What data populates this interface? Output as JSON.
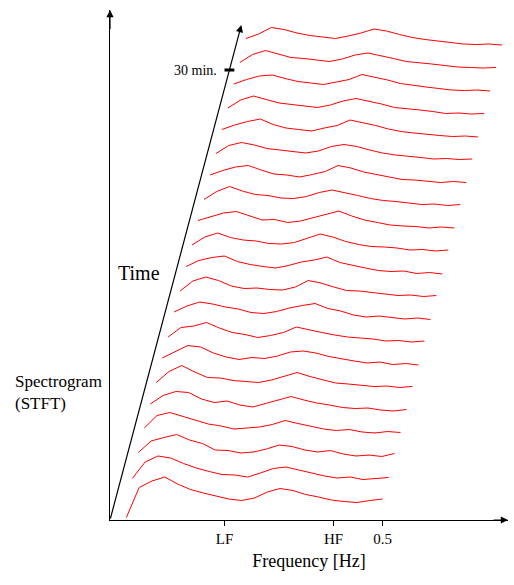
{
  "chart_data": {
    "type": "waterfall",
    "x_label": "Frequency [Hz]",
    "y_label": "Spectrogram (STFT)",
    "time_label": "Time",
    "color": "#ff0000",
    "grid": false,
    "tick_labels": "x",
    "xlim": [
      0,
      0.73
    ],
    "xticks": [
      {
        "value": 0.21,
        "label": "LF"
      },
      {
        "value": 0.41,
        "label": "HF"
      },
      0.5
    ],
    "ylim": [
      0,
      102
    ],
    "yticks": [],
    "time_lim": [
      0,
      33
    ],
    "time_ticks": [
      {
        "value": 30,
        "label": "30 min."
      }
    ],
    "x": [
      0.03,
      0.0535,
      0.077,
      0.1005,
      0.124,
      0.1475,
      0.171,
      0.1945,
      0.218,
      0.2415,
      0.265,
      0.2885,
      0.312,
      0.3355,
      0.359,
      0.3825,
      0.406,
      0.4295,
      0.453,
      0.4765,
      0.5
    ],
    "series": [
      {
        "time": 0,
        "values": [
          0.5,
          6.5,
          7.8,
          8.6,
          7.2,
          6.1,
          5.4,
          4.8,
          4.2,
          3.9,
          4.4,
          5.6,
          6.3,
          5.9,
          5.1,
          4.6,
          4.0,
          3.7,
          3.5,
          3.9,
          4.2
        ]
      },
      {
        "time": 1.5,
        "values": [
          3.8,
          7.1,
          8.3,
          7.9,
          6.8,
          5.9,
          5.2,
          4.6,
          4.5,
          4.1,
          4.9,
          5.8,
          6.1,
          5.5,
          4.8,
          4.3,
          3.9,
          4.1,
          3.6,
          3.8,
          4.0
        ]
      },
      {
        "time": 3,
        "values": [
          4.5,
          6.8,
          7.5,
          8.1,
          7.0,
          6.3,
          5.0,
          4.9,
          4.4,
          4.6,
          5.2,
          6.0,
          5.7,
          5.0,
          4.6,
          4.9,
          4.2,
          3.8,
          4.0,
          3.7,
          4.3
        ]
      },
      {
        "time": 4.5,
        "values": [
          4.9,
          7.4,
          8.0,
          7.2,
          6.5,
          5.7,
          5.3,
          4.7,
          4.9,
          5.1,
          5.6,
          6.4,
          5.8,
          5.3,
          4.7,
          4.4,
          4.6,
          4.1,
          3.9,
          4.2,
          4.0
        ]
      },
      {
        "time": 6,
        "values": [
          5.2,
          6.9,
          7.7,
          7.5,
          6.2,
          5.5,
          5.8,
          5.0,
          4.6,
          5.3,
          6.1,
          6.7,
          6.0,
          5.4,
          5.0,
          4.5,
          4.3,
          4.4,
          4.0,
          3.8,
          4.1
        ]
      },
      {
        "time": 7.5,
        "values": [
          5.0,
          7.2,
          8.4,
          7.1,
          6.0,
          5.9,
          5.4,
          5.2,
          5.0,
          5.5,
          6.3,
          7.0,
          6.2,
          5.6,
          4.9,
          4.7,
          4.5,
          4.2,
          4.3,
          4.0,
          4.2
        ]
      },
      {
        "time": 9,
        "values": [
          5.4,
          6.6,
          7.9,
          7.6,
          6.4,
          5.6,
          5.1,
          5.5,
          5.3,
          5.8,
          6.6,
          6.8,
          6.4,
          5.7,
          5.2,
          4.8,
          4.4,
          4.6,
          4.1,
          4.3,
          4.0
        ]
      },
      {
        "time": 10.5,
        "values": [
          5.1,
          7.0,
          7.3,
          8.0,
          6.9,
          6.0,
          5.6,
          5.0,
          5.4,
          6.0,
          7.1,
          6.5,
          6.0,
          5.5,
          5.1,
          4.9,
          4.7,
          4.3,
          4.4,
          4.1,
          4.3
        ]
      },
      {
        "time": 12,
        "values": [
          5.6,
          6.8,
          7.6,
          7.2,
          6.6,
          6.2,
          5.5,
          5.3,
          5.7,
          6.4,
          6.9,
          7.3,
          6.3,
          5.8,
          5.0,
          4.6,
          4.8,
          4.5,
          4.2,
          4.4,
          4.1
        ]
      },
      {
        "time": 13.5,
        "values": [
          5.3,
          7.3,
          8.1,
          7.4,
          6.3,
          5.8,
          5.9,
          5.6,
          5.5,
          6.1,
          7.4,
          6.9,
          6.1,
          5.4,
          5.3,
          5.0,
          4.6,
          4.4,
          4.5,
          4.2,
          4.4
        ]
      },
      {
        "time": 15,
        "values": [
          5.7,
          6.9,
          7.5,
          7.8,
          6.7,
          6.1,
          5.7,
          5.4,
          5.9,
          6.6,
          7.0,
          7.6,
          6.5,
          5.9,
          5.4,
          4.9,
          4.7,
          4.8,
          4.3,
          4.5,
          4.2
        ]
      },
      {
        "time": 16.5,
        "values": [
          5.5,
          7.1,
          7.9,
          7.0,
          6.5,
          6.3,
          5.8,
          5.7,
          6.0,
          6.8,
          7.7,
          7.1,
          6.2,
          5.6,
          5.2,
          5.1,
          4.9,
          4.5,
          4.6,
          4.3,
          4.5
        ]
      },
      {
        "time": 18,
        "values": [
          5.9,
          6.7,
          7.4,
          7.7,
          6.9,
          6.0,
          6.1,
          5.5,
          5.8,
          6.5,
          7.2,
          7.8,
          6.8,
          6.0,
          5.5,
          5.0,
          4.8,
          4.7,
          4.4,
          4.6,
          4.4
        ]
      },
      {
        "time": 19.5,
        "values": [
          5.6,
          7.2,
          8.2,
          7.3,
          6.6,
          6.4,
          5.9,
          5.8,
          6.2,
          7.0,
          7.5,
          7.0,
          6.4,
          5.8,
          5.4,
          5.2,
          4.9,
          4.6,
          4.7,
          4.4,
          4.6
        ]
      },
      {
        "time": 21,
        "values": [
          6.0,
          6.9,
          7.6,
          7.9,
          7.0,
          6.2,
          6.0,
          5.6,
          6.1,
          6.7,
          7.9,
          7.4,
          6.6,
          6.1,
          5.6,
          5.1,
          5.0,
          4.8,
          4.5,
          4.7,
          4.5
        ]
      },
      {
        "time": 22.5,
        "values": [
          5.8,
          7.4,
          8.0,
          7.5,
          6.8,
          6.5,
          6.2,
          5.9,
          6.3,
          7.2,
          7.6,
          7.2,
          6.5,
          5.9,
          5.5,
          5.3,
          5.0,
          4.7,
          4.8,
          4.6,
          4.7
        ]
      },
      {
        "time": 24,
        "values": [
          6.1,
          7.0,
          7.7,
          8.2,
          7.1,
          6.4,
          6.1,
          5.8,
          6.4,
          6.9,
          8.0,
          7.5,
          6.9,
          6.2,
          5.7,
          5.4,
          5.1,
          4.9,
          4.7,
          4.8,
          4.6
        ]
      },
      {
        "time": 25.5,
        "values": [
          5.9,
          7.5,
          8.3,
          7.6,
          6.9,
          6.6,
          6.3,
          6.0,
          6.5,
          7.3,
          7.8,
          7.3,
          6.7,
          6.0,
          5.8,
          5.5,
          5.2,
          4.8,
          4.9,
          4.7,
          4.8
        ]
      },
      {
        "time": 27,
        "values": [
          6.2,
          7.1,
          7.8,
          8.0,
          7.3,
          6.7,
          6.4,
          6.1,
          6.6,
          7.1,
          8.1,
          7.6,
          7.0,
          6.3,
          5.9,
          5.6,
          5.3,
          5.0,
          4.9,
          5.0,
          4.8
        ]
      },
      {
        "time": 28.5,
        "values": [
          6.0,
          7.6,
          8.4,
          7.7,
          7.0,
          6.8,
          6.5,
          6.2,
          6.7,
          7.5,
          7.9,
          7.4,
          6.8,
          6.2,
          6.0,
          5.7,
          5.4,
          5.1,
          5.0,
          4.9,
          5.0
        ]
      },
      {
        "time": 30,
        "values": [
          6.3,
          7.2,
          8.5,
          8.1,
          7.4,
          6.9,
          6.6,
          6.3,
          6.8,
          7.4,
          8.2,
          7.8,
          7.1,
          6.5,
          6.1,
          5.8,
          5.5,
          5.2,
          5.1,
          5.2,
          5.0
        ]
      }
    ]
  }
}
